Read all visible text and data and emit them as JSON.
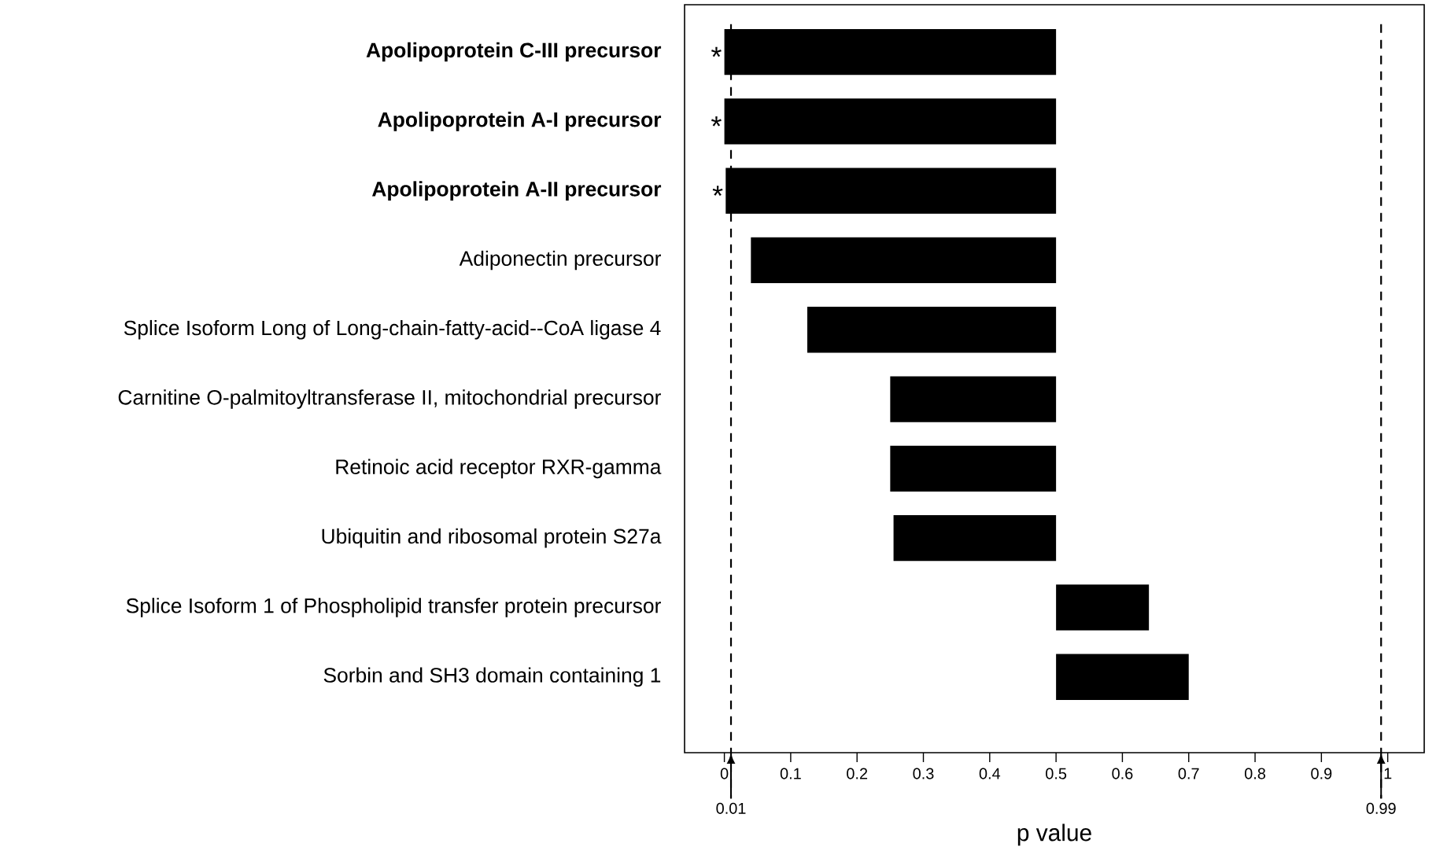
{
  "chart_data": {
    "type": "bar",
    "orientation": "horizontal",
    "xlabel": "p value",
    "categories": [
      "**Apolipoprotein C-III precursor**",
      "**Apolipoprotein A-I precursor**",
      "**Apolipoprotein A-II precursor**",
      "Adiponectin precursor",
      "Splice Isoform Long of Long-chain-fatty-acid--CoA ligase 4",
      "Carnitine O-palmitoyltransferase II, mitochondrial precursor",
      "Retinoic acid receptor RXR-gamma",
      "Ubiquitin and ribosomal protein S27a",
      "Splice Isoform 1 of Phospholipid transfer protein precursor",
      "Sorbin and SH3 domain containing 1"
    ],
    "base": [
      0,
      0,
      0.002,
      0.04,
      0.125,
      0.25,
      0.25,
      0.255,
      0.5,
      0.5
    ],
    "values": [
      0.5,
      0.5,
      0.498,
      0.46,
      0.375,
      0.25,
      0.25,
      0.245,
      0.14,
      0.2
    ],
    "color": "#000000",
    "xlim": [
      -0.06,
      1.055
    ],
    "xticks": [
      0,
      0.1,
      0.2,
      0.3,
      0.4,
      0.5,
      0.6,
      0.7,
      0.8,
      0.9,
      1
    ],
    "grid": false,
    "ref_lines": [
      {
        "axis": "x",
        "value": 0.01,
        "label": "0.01",
        "line_style": "dashed",
        "color": "#000000"
      },
      {
        "axis": "x",
        "value": 0.99,
        "label": "0.99",
        "line_style": "dashed",
        "color": "#000000"
      }
    ],
    "annotations": [
      "*",
      "*",
      "*"
    ]
  }
}
